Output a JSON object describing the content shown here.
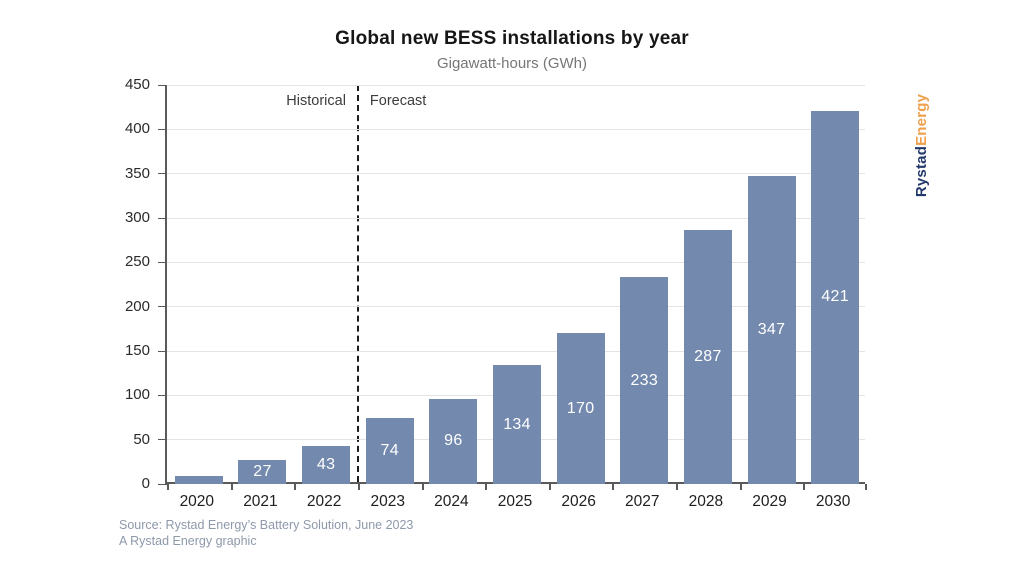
{
  "header": {
    "title": "Global new BESS installations by year",
    "subtitle": "Gigawatt-hours (GWh)"
  },
  "chart_data": {
    "type": "bar",
    "title": "Global new BESS installations by year",
    "subtitle": "Gigawatt-hours (GWh)",
    "unit": "GWh",
    "categories": [
      "2020",
      "2021",
      "2022",
      "2023",
      "2024",
      "2025",
      "2026",
      "2027",
      "2028",
      "2029",
      "2030"
    ],
    "values": [
      9,
      27,
      43,
      74,
      96,
      134,
      170,
      233,
      287,
      347,
      421
    ],
    "value_labels": [
      "",
      "27",
      "43",
      "74",
      "96",
      "134",
      "170",
      "233",
      "287",
      "347",
      "421"
    ],
    "xlabel": "",
    "ylabel": "",
    "ylim": [
      0,
      450
    ],
    "ytick_step": 50,
    "grid": true,
    "legend": "none",
    "bar_color": "#7389ae",
    "value_label_color": "#ffffff",
    "annotations": {
      "historical_label": "Historical",
      "forecast_label": "Forecast",
      "divider_before_category": "2023"
    }
  },
  "footer": {
    "source_line1": "Source: Rystad Energy’s Battery Solution, June 2023",
    "source_line2": "A Rystad Energy graphic"
  },
  "branding": {
    "logo_part1": "Rystad",
    "logo_part2": "Energy",
    "logo_part1_color": "#24396b",
    "logo_part2_color": "#efa04c"
  }
}
